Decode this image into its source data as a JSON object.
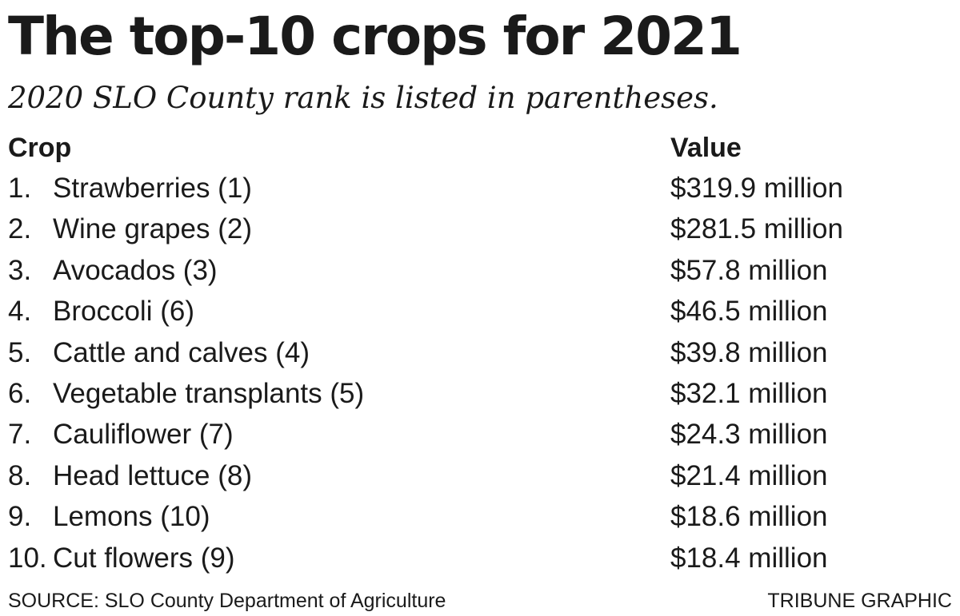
{
  "title": "The top-10 crops for 2021",
  "subtitle": "2020 SLO County rank is listed in parentheses.",
  "source": "SOURCE: SLO County Department of Agriculture",
  "credit": "TRIBUNE GRAPHIC",
  "chart_data": {
    "type": "table",
    "title": "The top-10 crops for 2021",
    "subtitle": "2020 SLO County rank is listed in parentheses.",
    "columns": [
      "Crop",
      "Value"
    ],
    "rows": [
      {
        "rank": "1.",
        "crop": "Strawberries (1)",
        "value": "$319.9 million"
      },
      {
        "rank": "2.",
        "crop": "Wine grapes (2)",
        "value": "$281.5 million"
      },
      {
        "rank": "3.",
        "crop": "Avocados (3)",
        "value": "$57.8 million"
      },
      {
        "rank": "4.",
        "crop": "Broccoli (6)",
        "value": "$46.5 million"
      },
      {
        "rank": "5.",
        "crop": "Cattle and calves (4)",
        "value": "$39.8 million"
      },
      {
        "rank": "6.",
        "crop": "Vegetable transplants (5)",
        "value": "$32.1 million"
      },
      {
        "rank": "7.",
        "crop": "Cauliflower (7)",
        "value": "$24.3 million"
      },
      {
        "rank": "8.",
        "crop": "Head lettuce (8)",
        "value": "$21.4 million"
      },
      {
        "rank": "9.",
        "crop": "Lemons (10)",
        "value": "$18.6 million"
      },
      {
        "rank": "10.",
        "crop": "Cut flowers (9)",
        "value": "$18.4 million"
      }
    ]
  }
}
